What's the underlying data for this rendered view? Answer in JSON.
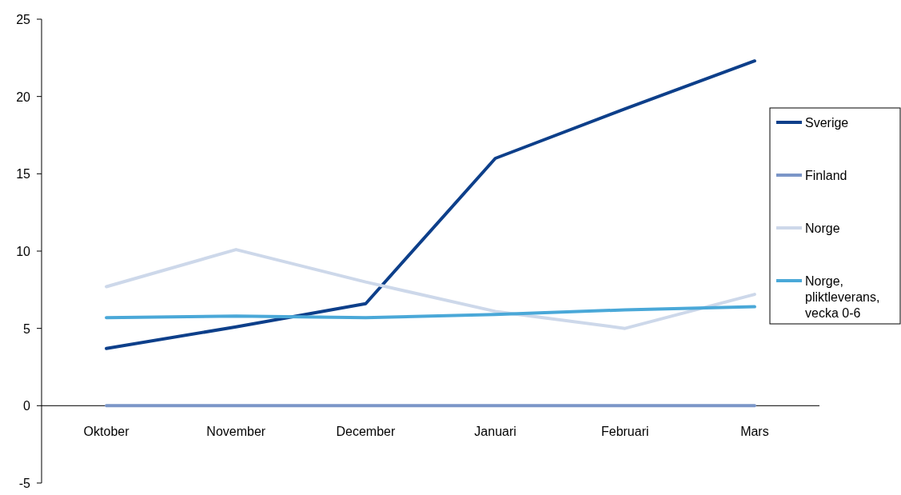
{
  "chart_data": {
    "type": "line",
    "categories": [
      "Oktober",
      "November",
      "December",
      "Januari",
      "Februari",
      "Mars"
    ],
    "series": [
      {
        "name": "Sverige",
        "color": "#0d3f8a",
        "values": [
          3.7,
          5.1,
          6.6,
          16.0,
          19.2,
          22.3
        ]
      },
      {
        "name": "Finland",
        "color": "#7b96c8",
        "values": [
          0,
          0,
          0,
          0,
          0,
          0
        ]
      },
      {
        "name": "Norge",
        "color": "#cdd8ea",
        "values": [
          7.7,
          10.1,
          8.0,
          6.1,
          5.0,
          7.2
        ]
      },
      {
        "name": "Norge, pliktleverans, vecka 0-6",
        "color": "#4aa8d8",
        "values": [
          5.7,
          5.8,
          5.7,
          5.9,
          6.2,
          6.4
        ]
      }
    ],
    "ylim": [
      -5,
      25
    ],
    "yticks": [
      -5,
      0,
      5,
      10,
      15,
      20,
      25
    ],
    "grid": false,
    "legend": "right",
    "marker": "none",
    "line_style": "solid"
  }
}
